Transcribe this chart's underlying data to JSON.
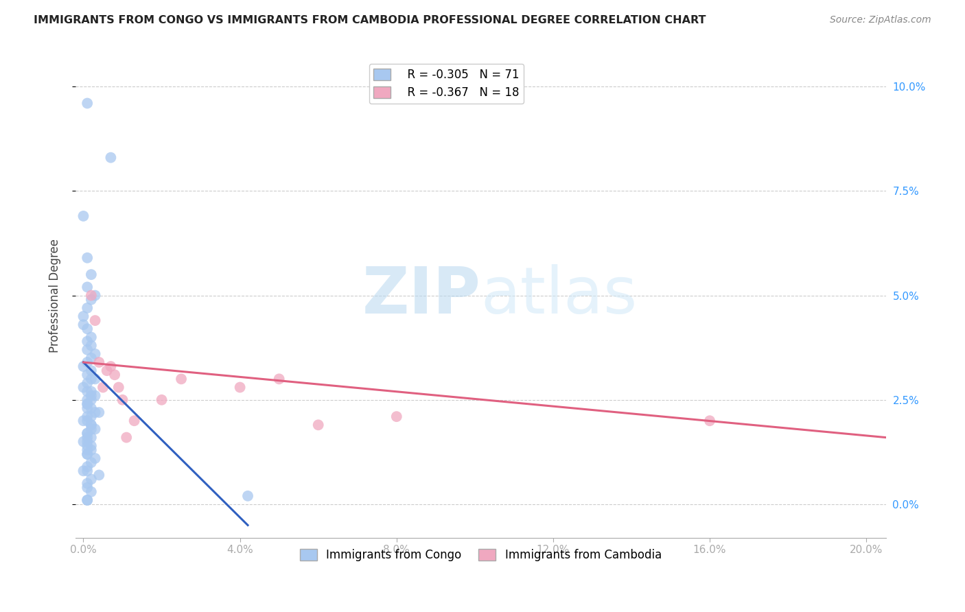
{
  "title": "IMMIGRANTS FROM CONGO VS IMMIGRANTS FROM CAMBODIA PROFESSIONAL DEGREE CORRELATION CHART",
  "source": "Source: ZipAtlas.com",
  "ylabel": "Professional Degree",
  "ytick_values": [
    0.0,
    0.025,
    0.05,
    0.075,
    0.1
  ],
  "ytick_labels": [
    "0.0%",
    "2.5%",
    "5.0%",
    "7.5%",
    "10.0%"
  ],
  "xtick_values": [
    0.0,
    0.04,
    0.08,
    0.12,
    0.16,
    0.2
  ],
  "xtick_labels": [
    "0.0%",
    "4.0%",
    "8.0%",
    "12.0%",
    "16.0%",
    "20.0%"
  ],
  "xlim": [
    -0.002,
    0.205
  ],
  "ylim": [
    -0.008,
    0.108
  ],
  "legend_r1": "R = -0.305",
  "legend_n1": "N = 71",
  "legend_r2": "R = -0.367",
  "legend_n2": "N = 18",
  "color_congo": "#a8c8f0",
  "color_cambodia": "#f0a8c0",
  "color_line_congo": "#3060c0",
  "color_line_cambodia": "#e06080",
  "watermark_zip": "ZIP",
  "watermark_atlas": "atlas",
  "congo_x": [
    0.001,
    0.007,
    0.0,
    0.001,
    0.002,
    0.001,
    0.003,
    0.002,
    0.001,
    0.0,
    0.0,
    0.001,
    0.002,
    0.001,
    0.002,
    0.001,
    0.003,
    0.002,
    0.001,
    0.0,
    0.002,
    0.001,
    0.003,
    0.002,
    0.001,
    0.0,
    0.002,
    0.001,
    0.003,
    0.002,
    0.001,
    0.002,
    0.001,
    0.001,
    0.002,
    0.001,
    0.003,
    0.004,
    0.002,
    0.001,
    0.001,
    0.0,
    0.002,
    0.002,
    0.003,
    0.002,
    0.001,
    0.001,
    0.002,
    0.001,
    0.001,
    0.0,
    0.002,
    0.001,
    0.002,
    0.001,
    0.001,
    0.001,
    0.003,
    0.002,
    0.001,
    0.001,
    0.0,
    0.004,
    0.002,
    0.001,
    0.001,
    0.002,
    0.042,
    0.001,
    0.001
  ],
  "congo_y": [
    0.096,
    0.083,
    0.069,
    0.059,
    0.055,
    0.052,
    0.05,
    0.049,
    0.047,
    0.045,
    0.043,
    0.042,
    0.04,
    0.039,
    0.038,
    0.037,
    0.036,
    0.035,
    0.034,
    0.033,
    0.032,
    0.031,
    0.03,
    0.03,
    0.029,
    0.028,
    0.027,
    0.027,
    0.026,
    0.026,
    0.025,
    0.025,
    0.024,
    0.024,
    0.023,
    0.023,
    0.022,
    0.022,
    0.021,
    0.021,
    0.02,
    0.02,
    0.019,
    0.019,
    0.018,
    0.018,
    0.017,
    0.017,
    0.016,
    0.016,
    0.015,
    0.015,
    0.014,
    0.014,
    0.013,
    0.013,
    0.012,
    0.012,
    0.011,
    0.01,
    0.009,
    0.008,
    0.008,
    0.007,
    0.006,
    0.005,
    0.004,
    0.003,
    0.002,
    0.001,
    0.001
  ],
  "cambodia_x": [
    0.002,
    0.003,
    0.004,
    0.005,
    0.006,
    0.007,
    0.008,
    0.009,
    0.01,
    0.011,
    0.013,
    0.02,
    0.025,
    0.04,
    0.05,
    0.06,
    0.08,
    0.16
  ],
  "cambodia_y": [
    0.05,
    0.044,
    0.034,
    0.028,
    0.032,
    0.033,
    0.031,
    0.028,
    0.025,
    0.016,
    0.02,
    0.025,
    0.03,
    0.028,
    0.03,
    0.019,
    0.021,
    0.02
  ],
  "congo_line_x": [
    0.0,
    0.042
  ],
  "congo_line_y": [
    0.034,
    -0.005
  ],
  "cambodia_line_x": [
    0.0,
    0.205
  ],
  "cambodia_line_y": [
    0.034,
    0.016
  ]
}
